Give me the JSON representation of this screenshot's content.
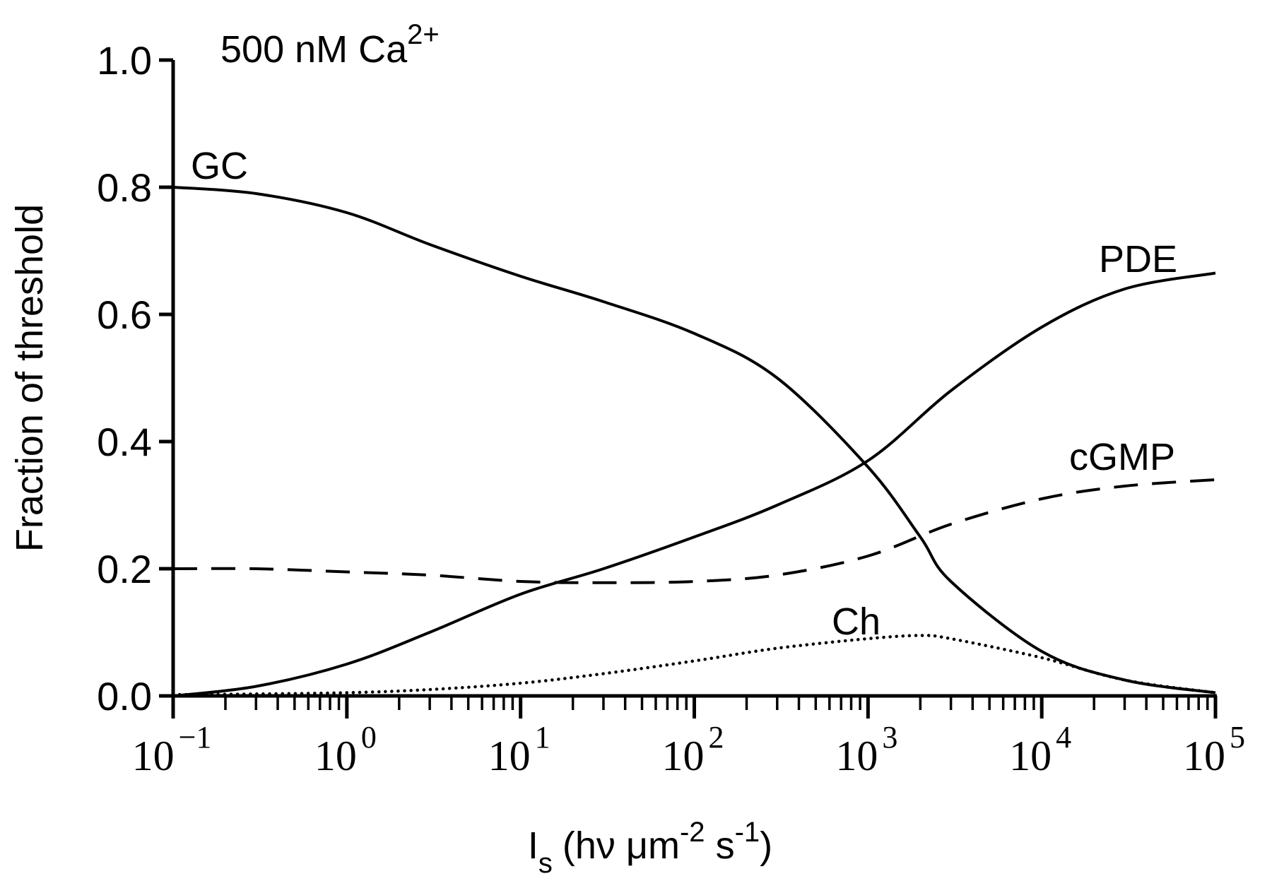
{
  "chart_data": {
    "type": "line",
    "title": "500 nM Ca",
    "title_sup": "2+",
    "ylabel": "Fraction of threshold",
    "xlabel": {
      "main": "I",
      "sub": "s",
      "units_a": "(hν μm",
      "sup1": "-2",
      "units_b": " s",
      "sup2": "-1",
      "units_c": ")"
    },
    "xscale": "log",
    "xlim": [
      0.1,
      100000
    ],
    "ylim": [
      0.0,
      1.0
    ],
    "y_ticks": [
      {
        "value": 0.0,
        "label": "0.0"
      },
      {
        "value": 0.2,
        "label": "0.2"
      },
      {
        "value": 0.4,
        "label": "0.4"
      },
      {
        "value": 0.6,
        "label": "0.6"
      },
      {
        "value": 0.8,
        "label": "0.8"
      },
      {
        "value": 1.0,
        "label": "1.0"
      }
    ],
    "x_ticks": [
      {
        "exp": -1,
        "base": "10",
        "sup": "−1"
      },
      {
        "exp": 0,
        "base": "10",
        "sup": "0"
      },
      {
        "exp": 1,
        "base": "10",
        "sup": "1"
      },
      {
        "exp": 2,
        "base": "10",
        "sup": "2"
      },
      {
        "exp": 3,
        "base": "10",
        "sup": "3"
      },
      {
        "exp": 4,
        "base": "10",
        "sup": "4"
      },
      {
        "exp": 5,
        "base": "10",
        "sup": "5"
      }
    ],
    "series": [
      {
        "name": "GC",
        "style": "solid",
        "x": [
          0.1,
          0.3,
          1,
          3,
          10,
          30,
          100,
          300,
          1000,
          2000,
          3000,
          10000,
          30000,
          100000
        ],
        "y": [
          0.8,
          0.79,
          0.76,
          0.71,
          0.66,
          0.62,
          0.57,
          0.5,
          0.36,
          0.25,
          0.18,
          0.07,
          0.025,
          0.005
        ]
      },
      {
        "name": "PDE",
        "style": "solid",
        "x": [
          0.1,
          0.3,
          1,
          3,
          10,
          30,
          100,
          300,
          1000,
          3000,
          10000,
          30000,
          100000
        ],
        "y": [
          0.0,
          0.015,
          0.05,
          0.1,
          0.16,
          0.2,
          0.25,
          0.3,
          0.37,
          0.48,
          0.58,
          0.64,
          0.665
        ]
      },
      {
        "name": "cGMP",
        "style": "dashed",
        "x": [
          0.1,
          0.3,
          1,
          3,
          10,
          30,
          100,
          300,
          1000,
          3000,
          10000,
          30000,
          100000
        ],
        "y": [
          0.2,
          0.2,
          0.195,
          0.19,
          0.18,
          0.178,
          0.18,
          0.19,
          0.22,
          0.27,
          0.31,
          0.33,
          0.34
        ]
      },
      {
        "name": "Ch",
        "style": "dotted",
        "x": [
          0.1,
          0.3,
          1,
          3,
          10,
          30,
          100,
          300,
          1000,
          2000,
          3000,
          10000,
          30000,
          100000
        ],
        "y": [
          0.002,
          0.003,
          0.005,
          0.01,
          0.02,
          0.035,
          0.055,
          0.075,
          0.09,
          0.095,
          0.09,
          0.06,
          0.025,
          0.005
        ]
      }
    ],
    "annotations": [
      {
        "text": "GC",
        "near_series": "GC",
        "position": "upper-left"
      },
      {
        "text": "PDE",
        "near_series": "PDE",
        "position": "upper-right"
      },
      {
        "text": "cGMP",
        "near_series": "cGMP",
        "position": "right"
      },
      {
        "text": "Ch",
        "near_series": "Ch",
        "position": "above-peak"
      }
    ]
  }
}
